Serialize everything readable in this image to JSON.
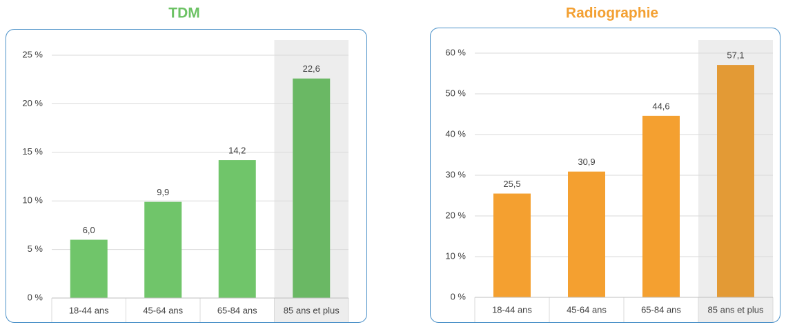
{
  "chart_data": [
    {
      "type": "bar",
      "title": "TDM",
      "title_color": "#6cc264",
      "categories": [
        "18-44 ans",
        "45-64 ans",
        "65-84 ans",
        "85 ans et plus"
      ],
      "values": [
        6.0,
        9.9,
        14.2,
        22.6
      ],
      "value_labels": [
        "6,0",
        "9,9",
        "14,2",
        "22,6"
      ],
      "colors": [
        "#70c56a",
        "#70c56a",
        "#70c56a",
        "#6ab864"
      ],
      "ylim": [
        0,
        25
      ],
      "yticks": [
        {
          "value": 0,
          "label": "0 %"
        },
        {
          "value": 5,
          "label": "5 %"
        },
        {
          "value": 10,
          "label": "10 %"
        },
        {
          "value": 15,
          "label": "15 %"
        },
        {
          "value": 20,
          "label": "20 %"
        },
        {
          "value": 25,
          "label": "25 %"
        }
      ],
      "grid": true
    },
    {
      "type": "bar",
      "title": "Radiographie",
      "title_color": "#f3a032",
      "categories": [
        "18-44 ans",
        "45-64 ans",
        "65-84 ans",
        "85 ans et plus"
      ],
      "values": [
        25.5,
        30.9,
        44.6,
        57.1
      ],
      "value_labels": [
        "25,5",
        "30,9",
        "44,6",
        "57,1"
      ],
      "colors": [
        "#f4a030",
        "#f4a030",
        "#f4a030",
        "#e39a35"
      ],
      "ylim": [
        0,
        60
      ],
      "yticks": [
        {
          "value": 0,
          "label": "0 %"
        },
        {
          "value": 10,
          "label": "10 %"
        },
        {
          "value": 20,
          "label": "20 %"
        },
        {
          "value": 30,
          "label": "30 %"
        },
        {
          "value": 40,
          "label": "40 %"
        },
        {
          "value": 50,
          "label": "50 %"
        },
        {
          "value": 60,
          "label": "60 %"
        }
      ],
      "grid": true
    }
  ]
}
